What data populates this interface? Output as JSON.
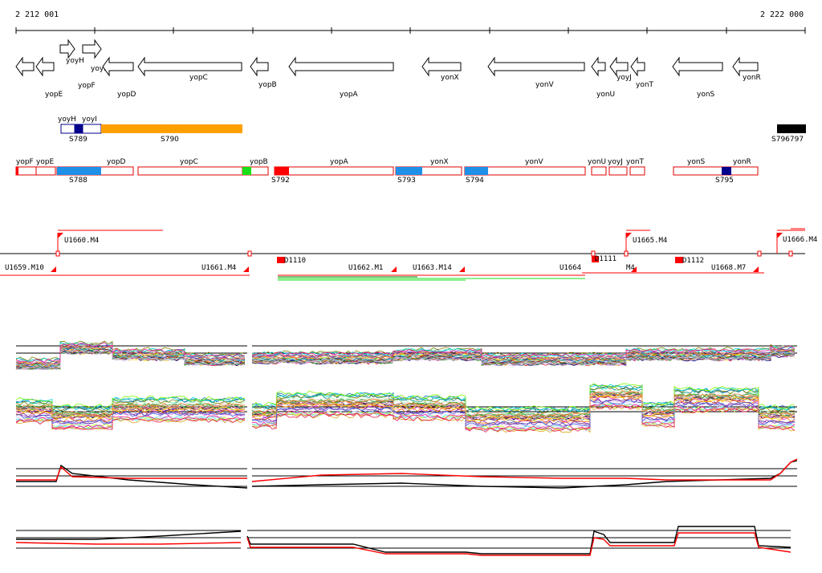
{
  "axis": {
    "start_label": "2 212 001",
    "end_label": "2 222 000"
  },
  "colors": {
    "gene_outline": "#000000",
    "region_outline": "#e00000",
    "orange": "#ffa000",
    "blue": "#1e90e8",
    "navy": "#00008b",
    "green": "#18e018",
    "red": "#ff0000",
    "black": "#000000"
  },
  "genes": [
    {
      "name": "yopF",
      "strand": "-",
      "row": 0
    },
    {
      "name": "yopE",
      "strand": "-",
      "row": 0
    },
    {
      "name": "yoyH",
      "strand": "+",
      "row": 1
    },
    {
      "name": "yoyI",
      "strand": "+",
      "row": 1
    },
    {
      "name": "yopD",
      "strand": "-",
      "row": 0
    },
    {
      "name": "yopC",
      "strand": "-",
      "row": 0
    },
    {
      "name": "yopB",
      "strand": "-",
      "row": 0
    },
    {
      "name": "yopA",
      "strand": "-",
      "row": 0
    },
    {
      "name": "yonX",
      "strand": "-",
      "row": 0
    },
    {
      "name": "yonV",
      "strand": "-",
      "row": 0
    },
    {
      "name": "yonU",
      "strand": "-",
      "row": 0
    },
    {
      "name": "yoyJ",
      "strand": "-",
      "row": 0
    },
    {
      "name": "yonT",
      "strand": "-",
      "row": 0
    },
    {
      "name": "yonS",
      "strand": "-",
      "row": 0
    },
    {
      "name": "yonR",
      "strand": "-",
      "row": 0
    }
  ],
  "s_track_1": {
    "gene_labels": [
      "yoyH",
      "yoyI"
    ],
    "labels": [
      "S789",
      "S790",
      "S796797"
    ]
  },
  "s_track_2": {
    "gene_labels": [
      "yopF",
      "yopE",
      "yopD",
      "yopC",
      "yopB",
      "yopA",
      "yonX",
      "yonV",
      "yonU",
      "yoyJ",
      "yonT",
      "yonS",
      "yonR"
    ],
    "labels": [
      "S788",
      "S792",
      "S793",
      "S794",
      "S795"
    ]
  },
  "transcripts": [
    {
      "name": "U1659.M10"
    },
    {
      "name": "U1660.M4"
    },
    {
      "name": "U1661.M4"
    },
    {
      "name": "D1110"
    },
    {
      "name": "U1662.M1"
    },
    {
      "name": "U1663.M14"
    },
    {
      "name": "U1664"
    },
    {
      "name": "U1665.M4"
    },
    {
      "name": "D1111"
    },
    {
      "name": "D1112"
    },
    {
      "name": "U1668.M7"
    },
    {
      "name": "U1666.M4"
    },
    {
      "name": "M4"
    }
  ],
  "panels": [
    {
      "name": "expression-panel-1",
      "type": "multi-line"
    },
    {
      "name": "expression-panel-2",
      "type": "multi-line"
    },
    {
      "name": "expression-panel-3",
      "type": "black-red"
    },
    {
      "name": "expression-panel-4",
      "type": "black-red"
    }
  ]
}
